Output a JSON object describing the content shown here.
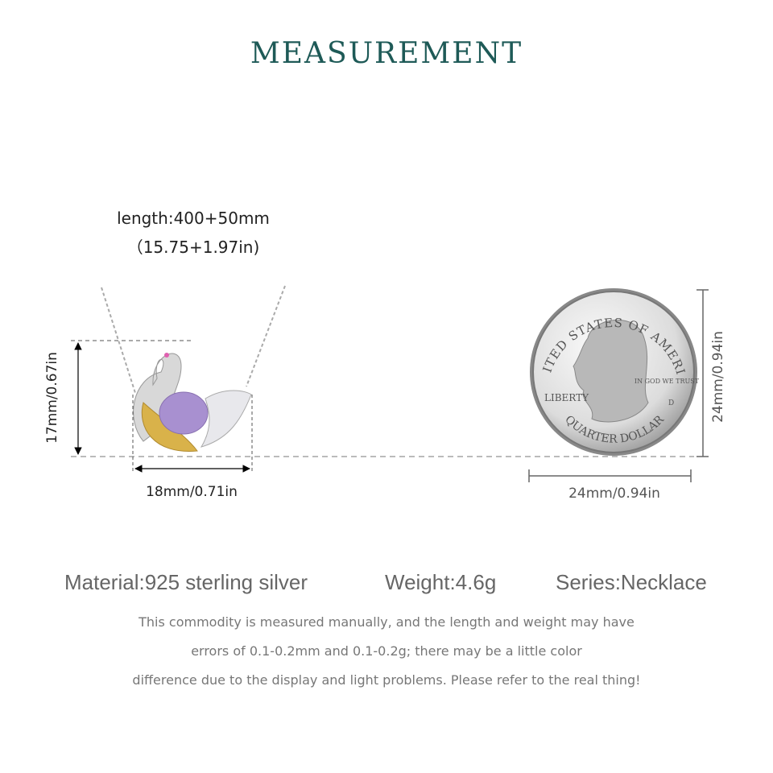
{
  "title": "MEASUREMENT",
  "necklace": {
    "length_line1": "length:400+50mm",
    "length_line2": "（15.75+1.97in)",
    "height_label": "17mm/0.67in",
    "width_label": "18mm/0.71in"
  },
  "coin": {
    "height_label": "24mm/0.94in",
    "width_label": "24mm/0.94in",
    "lettering": [
      "UNITED STATES OF AMERICA",
      "IN GOD WE TRUST",
      "LIBERTY",
      "QUARTER DOLLAR",
      "D"
    ]
  },
  "specs": {
    "material": "Material:925 sterling silver",
    "weight": "Weight:4.6g",
    "series": "Series:Necklace"
  },
  "disclaimer": [
    "This commodity is measured manually, and the length and weight may have",
    "errors of 0.1-0.2mm and 0.1-0.2g; there may be a little color",
    "difference due to the display and light problems. Please refer to the real thing!"
  ],
  "colors": {
    "title": "#1e5a57",
    "amethyst": "#a890d0",
    "gold": "#d9b24a",
    "silver": "#c8c8c8"
  }
}
